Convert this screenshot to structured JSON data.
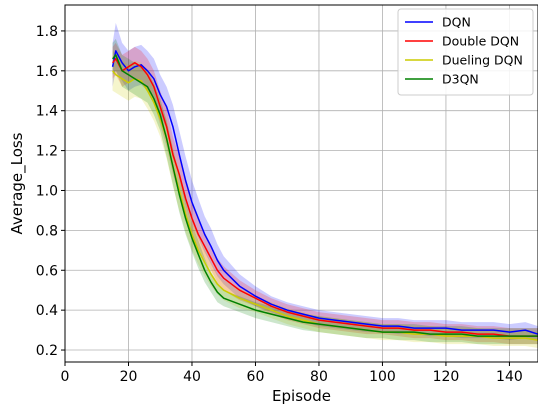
{
  "chart_data": {
    "type": "line",
    "xlabel": "Episode",
    "ylabel": "Average_Loss",
    "xlim": [
      0,
      149
    ],
    "ylim": [
      0.14,
      1.93
    ],
    "xticks": [
      0,
      20,
      40,
      60,
      80,
      100,
      120,
      140
    ],
    "yticks": [
      0.2,
      0.4,
      0.6,
      0.8,
      1.0,
      1.2,
      1.4,
      1.6,
      1.8
    ],
    "xtick_labels": [
      "0",
      "20",
      "40",
      "60",
      "80",
      "100",
      "120",
      "140"
    ],
    "ytick_labels": [
      "0.2",
      "0.4",
      "0.6",
      "0.8",
      "1.0",
      "1.2",
      "1.4",
      "1.6",
      "1.8"
    ],
    "grid": true,
    "legend_position": "top-right",
    "shaded_band": "min-max range across runs",
    "series": [
      {
        "name": "DQN",
        "color": "#0000ff",
        "x": [
          15,
          16,
          18,
          20,
          22,
          24,
          26,
          28,
          30,
          32,
          34,
          36,
          38,
          40,
          42,
          44,
          46,
          48,
          50,
          55,
          60,
          65,
          70,
          75,
          80,
          85,
          90,
          95,
          100,
          105,
          110,
          115,
          120,
          125,
          130,
          135,
          140,
          145,
          149
        ],
        "y": [
          1.62,
          1.7,
          1.64,
          1.6,
          1.62,
          1.63,
          1.6,
          1.56,
          1.48,
          1.42,
          1.32,
          1.18,
          1.05,
          0.94,
          0.86,
          0.78,
          0.72,
          0.65,
          0.6,
          0.52,
          0.47,
          0.43,
          0.4,
          0.38,
          0.36,
          0.35,
          0.34,
          0.33,
          0.32,
          0.32,
          0.31,
          0.31,
          0.31,
          0.3,
          0.3,
          0.3,
          0.29,
          0.3,
          0.28
        ],
        "band_lower": [
          1.52,
          1.6,
          1.55,
          1.5,
          1.52,
          1.53,
          1.5,
          1.46,
          1.38,
          1.31,
          1.2,
          1.06,
          0.93,
          0.83,
          0.76,
          0.69,
          0.63,
          0.57,
          0.53,
          0.46,
          0.42,
          0.39,
          0.36,
          0.34,
          0.32,
          0.31,
          0.3,
          0.29,
          0.29,
          0.28,
          0.28,
          0.27,
          0.27,
          0.26,
          0.26,
          0.26,
          0.25,
          0.26,
          0.25
        ],
        "band_upper": [
          1.74,
          1.84,
          1.74,
          1.7,
          1.72,
          1.73,
          1.7,
          1.66,
          1.58,
          1.52,
          1.43,
          1.3,
          1.17,
          1.05,
          0.96,
          0.87,
          0.81,
          0.73,
          0.67,
          0.58,
          0.52,
          0.47,
          0.44,
          0.42,
          0.4,
          0.39,
          0.38,
          0.37,
          0.36,
          0.36,
          0.35,
          0.35,
          0.35,
          0.34,
          0.34,
          0.34,
          0.33,
          0.34,
          0.32
        ]
      },
      {
        "name": "Double DQN",
        "color": "#ff0000",
        "x": [
          15,
          16,
          18,
          20,
          22,
          24,
          26,
          28,
          30,
          32,
          34,
          36,
          38,
          40,
          42,
          44,
          46,
          48,
          50,
          55,
          60,
          65,
          70,
          75,
          80,
          85,
          90,
          95,
          100,
          105,
          110,
          115,
          120,
          125,
          130,
          135,
          140,
          145,
          149
        ],
        "y": [
          1.64,
          1.66,
          1.6,
          1.62,
          1.64,
          1.62,
          1.58,
          1.52,
          1.42,
          1.32,
          1.18,
          1.08,
          0.96,
          0.86,
          0.78,
          0.72,
          0.66,
          0.6,
          0.56,
          0.5,
          0.46,
          0.42,
          0.39,
          0.37,
          0.35,
          0.34,
          0.33,
          0.32,
          0.31,
          0.31,
          0.3,
          0.3,
          0.29,
          0.29,
          0.28,
          0.28,
          0.27,
          0.27,
          0.27
        ],
        "band_lower": [
          1.56,
          1.58,
          1.52,
          1.54,
          1.56,
          1.54,
          1.5,
          1.44,
          1.33,
          1.22,
          1.08,
          0.98,
          0.87,
          0.78,
          0.71,
          0.65,
          0.6,
          0.54,
          0.5,
          0.45,
          0.42,
          0.38,
          0.35,
          0.33,
          0.31,
          0.3,
          0.29,
          0.28,
          0.28,
          0.27,
          0.26,
          0.26,
          0.25,
          0.25,
          0.24,
          0.24,
          0.23,
          0.23,
          0.23
        ],
        "band_upper": [
          1.72,
          1.74,
          1.68,
          1.7,
          1.72,
          1.7,
          1.66,
          1.6,
          1.5,
          1.41,
          1.27,
          1.17,
          1.05,
          0.94,
          0.85,
          0.79,
          0.72,
          0.66,
          0.62,
          0.55,
          0.5,
          0.46,
          0.43,
          0.41,
          0.39,
          0.38,
          0.37,
          0.36,
          0.35,
          0.35,
          0.34,
          0.34,
          0.33,
          0.33,
          0.32,
          0.32,
          0.31,
          0.31,
          0.31
        ]
      },
      {
        "name": "Dueling DQN",
        "color": "#cccc00",
        "x": [
          15,
          16,
          18,
          20,
          22,
          24,
          26,
          28,
          30,
          32,
          34,
          36,
          38,
          40,
          42,
          44,
          46,
          48,
          50,
          55,
          60,
          65,
          70,
          75,
          80,
          85,
          90,
          95,
          100,
          105,
          110,
          115,
          120,
          125,
          130,
          135,
          140,
          145,
          149
        ],
        "y": [
          1.6,
          1.58,
          1.56,
          1.54,
          1.56,
          1.55,
          1.5,
          1.44,
          1.36,
          1.26,
          1.12,
          1.0,
          0.88,
          0.78,
          0.7,
          0.64,
          0.58,
          0.53,
          0.5,
          0.46,
          0.43,
          0.4,
          0.37,
          0.35,
          0.33,
          0.32,
          0.31,
          0.3,
          0.29,
          0.29,
          0.28,
          0.28,
          0.27,
          0.27,
          0.27,
          0.26,
          0.26,
          0.26,
          0.25
        ],
        "band_lower": [
          1.5,
          1.49,
          1.47,
          1.45,
          1.47,
          1.46,
          1.41,
          1.35,
          1.27,
          1.16,
          1.02,
          0.9,
          0.79,
          0.7,
          0.63,
          0.57,
          0.52,
          0.48,
          0.45,
          0.41,
          0.39,
          0.36,
          0.33,
          0.31,
          0.29,
          0.28,
          0.27,
          0.26,
          0.25,
          0.25,
          0.24,
          0.24,
          0.23,
          0.23,
          0.23,
          0.22,
          0.22,
          0.22,
          0.21
        ],
        "band_upper": [
          1.7,
          1.68,
          1.65,
          1.63,
          1.65,
          1.64,
          1.59,
          1.53,
          1.45,
          1.36,
          1.22,
          1.1,
          0.97,
          0.86,
          0.77,
          0.71,
          0.64,
          0.58,
          0.55,
          0.51,
          0.47,
          0.44,
          0.41,
          0.39,
          0.37,
          0.36,
          0.35,
          0.34,
          0.33,
          0.33,
          0.32,
          0.32,
          0.31,
          0.31,
          0.31,
          0.3,
          0.3,
          0.3,
          0.29
        ]
      },
      {
        "name": "D3QN",
        "color": "#008000",
        "x": [
          15,
          16,
          18,
          20,
          22,
          24,
          26,
          28,
          30,
          32,
          34,
          36,
          38,
          40,
          42,
          44,
          46,
          48,
          50,
          55,
          60,
          65,
          70,
          75,
          80,
          85,
          90,
          95,
          100,
          105,
          110,
          115,
          120,
          125,
          130,
          135,
          140,
          145,
          149
        ],
        "y": [
          1.66,
          1.68,
          1.6,
          1.58,
          1.56,
          1.54,
          1.52,
          1.46,
          1.38,
          1.26,
          1.12,
          0.98,
          0.86,
          0.76,
          0.68,
          0.6,
          0.54,
          0.49,
          0.46,
          0.43,
          0.4,
          0.38,
          0.36,
          0.34,
          0.33,
          0.32,
          0.31,
          0.3,
          0.29,
          0.29,
          0.29,
          0.28,
          0.28,
          0.28,
          0.27,
          0.27,
          0.27,
          0.27,
          0.27
        ],
        "band_lower": [
          1.58,
          1.6,
          1.52,
          1.5,
          1.48,
          1.46,
          1.44,
          1.38,
          1.3,
          1.17,
          1.03,
          0.89,
          0.78,
          0.69,
          0.61,
          0.54,
          0.49,
          0.44,
          0.42,
          0.39,
          0.36,
          0.34,
          0.32,
          0.3,
          0.29,
          0.28,
          0.27,
          0.26,
          0.26,
          0.25,
          0.25,
          0.24,
          0.24,
          0.24,
          0.23,
          0.23,
          0.23,
          0.23,
          0.23
        ],
        "band_upper": [
          1.74,
          1.76,
          1.68,
          1.66,
          1.64,
          1.62,
          1.6,
          1.54,
          1.46,
          1.35,
          1.21,
          1.07,
          0.94,
          0.83,
          0.75,
          0.66,
          0.59,
          0.54,
          0.5,
          0.47,
          0.44,
          0.42,
          0.4,
          0.38,
          0.37,
          0.36,
          0.35,
          0.34,
          0.33,
          0.33,
          0.33,
          0.32,
          0.32,
          0.32,
          0.31,
          0.31,
          0.31,
          0.31,
          0.31
        ]
      }
    ]
  }
}
